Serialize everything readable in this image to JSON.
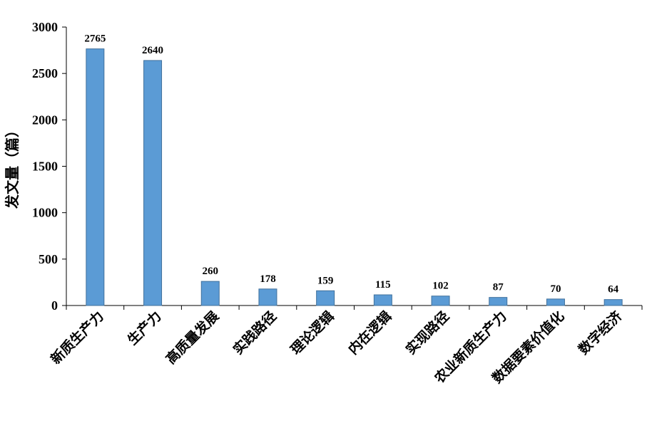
{
  "chart_data": {
    "type": "bar",
    "title": "",
    "xlabel": "",
    "ylabel": "发文量（篇）",
    "ylim": [
      0,
      3000
    ],
    "yticks": [
      0,
      500,
      1000,
      1500,
      2000,
      2500,
      3000
    ],
    "grid": false,
    "legend": "none",
    "bar_color": "#5B9BD5",
    "categories": [
      "新质生产力",
      "生产力",
      "高质量发展",
      "实践路径",
      "理论逻辑",
      "内在逻辑",
      "实现路径",
      "农业新质生产力",
      "数据要素价值化",
      "数字经济"
    ],
    "values": [
      2765,
      2640,
      260,
      178,
      159,
      115,
      102,
      87,
      70,
      64
    ]
  }
}
